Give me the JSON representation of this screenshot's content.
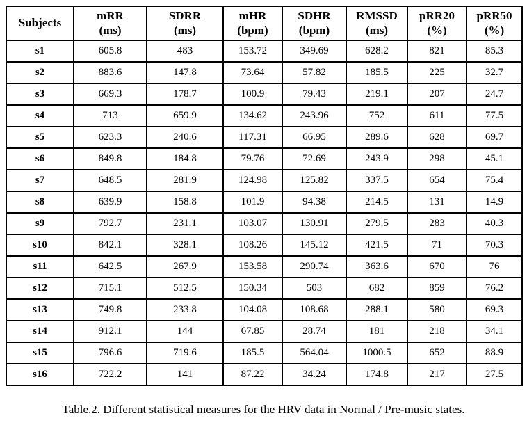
{
  "table": {
    "columns": [
      {
        "label": "Subjects",
        "unit": ""
      },
      {
        "label": "mRR",
        "unit": "(ms)"
      },
      {
        "label": "SDRR",
        "unit": "(ms)"
      },
      {
        "label": "mHR",
        "unit": "(bpm)"
      },
      {
        "label": "SDHR",
        "unit": "(bpm)"
      },
      {
        "label": "RMSSD",
        "unit": "(ms)"
      },
      {
        "label": "pRR20",
        "unit": "(%)"
      },
      {
        "label": "pRR50",
        "unit": "(%)"
      }
    ],
    "rows": [
      {
        "subject": "s1",
        "values": [
          "605.8",
          "483",
          "153.72",
          "349.69",
          "628.2",
          "821",
          "85.3"
        ]
      },
      {
        "subject": "s2",
        "values": [
          "883.6",
          "147.8",
          "73.64",
          "57.82",
          "185.5",
          "225",
          "32.7"
        ]
      },
      {
        "subject": "s3",
        "values": [
          "669.3",
          "178.7",
          "100.9",
          "79.43",
          "219.1",
          "207",
          "24.7"
        ]
      },
      {
        "subject": "s4",
        "values": [
          "713",
          "659.9",
          "134.62",
          "243.96",
          "752",
          "611",
          "77.5"
        ]
      },
      {
        "subject": "s5",
        "values": [
          "623.3",
          "240.6",
          "117.31",
          "66.95",
          "289.6",
          "628",
          "69.7"
        ]
      },
      {
        "subject": "s6",
        "values": [
          "849.8",
          "184.8",
          "79.76",
          "72.69",
          "243.9",
          "298",
          "45.1"
        ]
      },
      {
        "subject": "s7",
        "values": [
          "648.5",
          "281.9",
          "124.98",
          "125.82",
          "337.5",
          "654",
          "75.4"
        ]
      },
      {
        "subject": "s8",
        "values": [
          "639.9",
          "158.8",
          "101.9",
          "94.38",
          "214.5",
          "131",
          "14.9"
        ]
      },
      {
        "subject": "s9",
        "values": [
          "792.7",
          "231.1",
          "103.07",
          "130.91",
          "279.5",
          "283",
          "40.3"
        ]
      },
      {
        "subject": "s10",
        "values": [
          "842.1",
          "328.1",
          "108.26",
          "145.12",
          "421.5",
          "71",
          "70.3"
        ]
      },
      {
        "subject": "s11",
        "values": [
          "642.5",
          "267.9",
          "153.58",
          "290.74",
          "363.6",
          "670",
          "76"
        ]
      },
      {
        "subject": "s12",
        "values": [
          "715.1",
          "512.5",
          "150.34",
          "503",
          "682",
          "859",
          "76.2"
        ]
      },
      {
        "subject": "s13",
        "values": [
          "749.8",
          "233.8",
          "104.08",
          "108.68",
          "288.1",
          "580",
          "69.3"
        ]
      },
      {
        "subject": "s14",
        "values": [
          "912.1",
          "144",
          "67.85",
          "28.74",
          "181",
          "218",
          "34.1"
        ]
      },
      {
        "subject": "s15",
        "values": [
          "796.6",
          "719.6",
          "185.5",
          "564.04",
          "1000.5",
          "652",
          "88.9"
        ]
      },
      {
        "subject": "s16",
        "values": [
          "722.2",
          "141",
          "87.22",
          "34.24",
          "174.8",
          "217",
          "27.5"
        ]
      }
    ],
    "caption": "Table.2. Different statistical measures for the HRV data in Normal / Pre-music states."
  },
  "chart_data": {
    "type": "table",
    "title": "Table.2. Different statistical measures for the HRV data in Normal / Pre-music states.",
    "columns": [
      "Subjects",
      "mRR (ms)",
      "SDRR (ms)",
      "mHR (bpm)",
      "SDHR (bpm)",
      "RMSSD (ms)",
      "pRR20 (%)",
      "pRR50 (%)"
    ],
    "rows": [
      [
        "s1",
        605.8,
        483,
        153.72,
        349.69,
        628.2,
        821,
        85.3
      ],
      [
        "s2",
        883.6,
        147.8,
        73.64,
        57.82,
        185.5,
        225,
        32.7
      ],
      [
        "s3",
        669.3,
        178.7,
        100.9,
        79.43,
        219.1,
        207,
        24.7
      ],
      [
        "s4",
        713,
        659.9,
        134.62,
        243.96,
        752,
        611,
        77.5
      ],
      [
        "s5",
        623.3,
        240.6,
        117.31,
        66.95,
        289.6,
        628,
        69.7
      ],
      [
        "s6",
        849.8,
        184.8,
        79.76,
        72.69,
        243.9,
        298,
        45.1
      ],
      [
        "s7",
        648.5,
        281.9,
        124.98,
        125.82,
        337.5,
        654,
        75.4
      ],
      [
        "s8",
        639.9,
        158.8,
        101.9,
        94.38,
        214.5,
        131,
        14.9
      ],
      [
        "s9",
        792.7,
        231.1,
        103.07,
        130.91,
        279.5,
        283,
        40.3
      ],
      [
        "s10",
        842.1,
        328.1,
        108.26,
        145.12,
        421.5,
        71,
        70.3
      ],
      [
        "s11",
        642.5,
        267.9,
        153.58,
        290.74,
        363.6,
        670,
        76
      ],
      [
        "s12",
        715.1,
        512.5,
        150.34,
        503,
        682,
        859,
        76.2
      ],
      [
        "s13",
        749.8,
        233.8,
        104.08,
        108.68,
        288.1,
        580,
        69.3
      ],
      [
        "s14",
        912.1,
        144,
        67.85,
        28.74,
        181,
        218,
        34.1
      ],
      [
        "s15",
        796.6,
        719.6,
        185.5,
        564.04,
        1000.5,
        652,
        88.9
      ],
      [
        "s16",
        722.2,
        141,
        87.22,
        34.24,
        174.8,
        217,
        27.5
      ]
    ]
  }
}
